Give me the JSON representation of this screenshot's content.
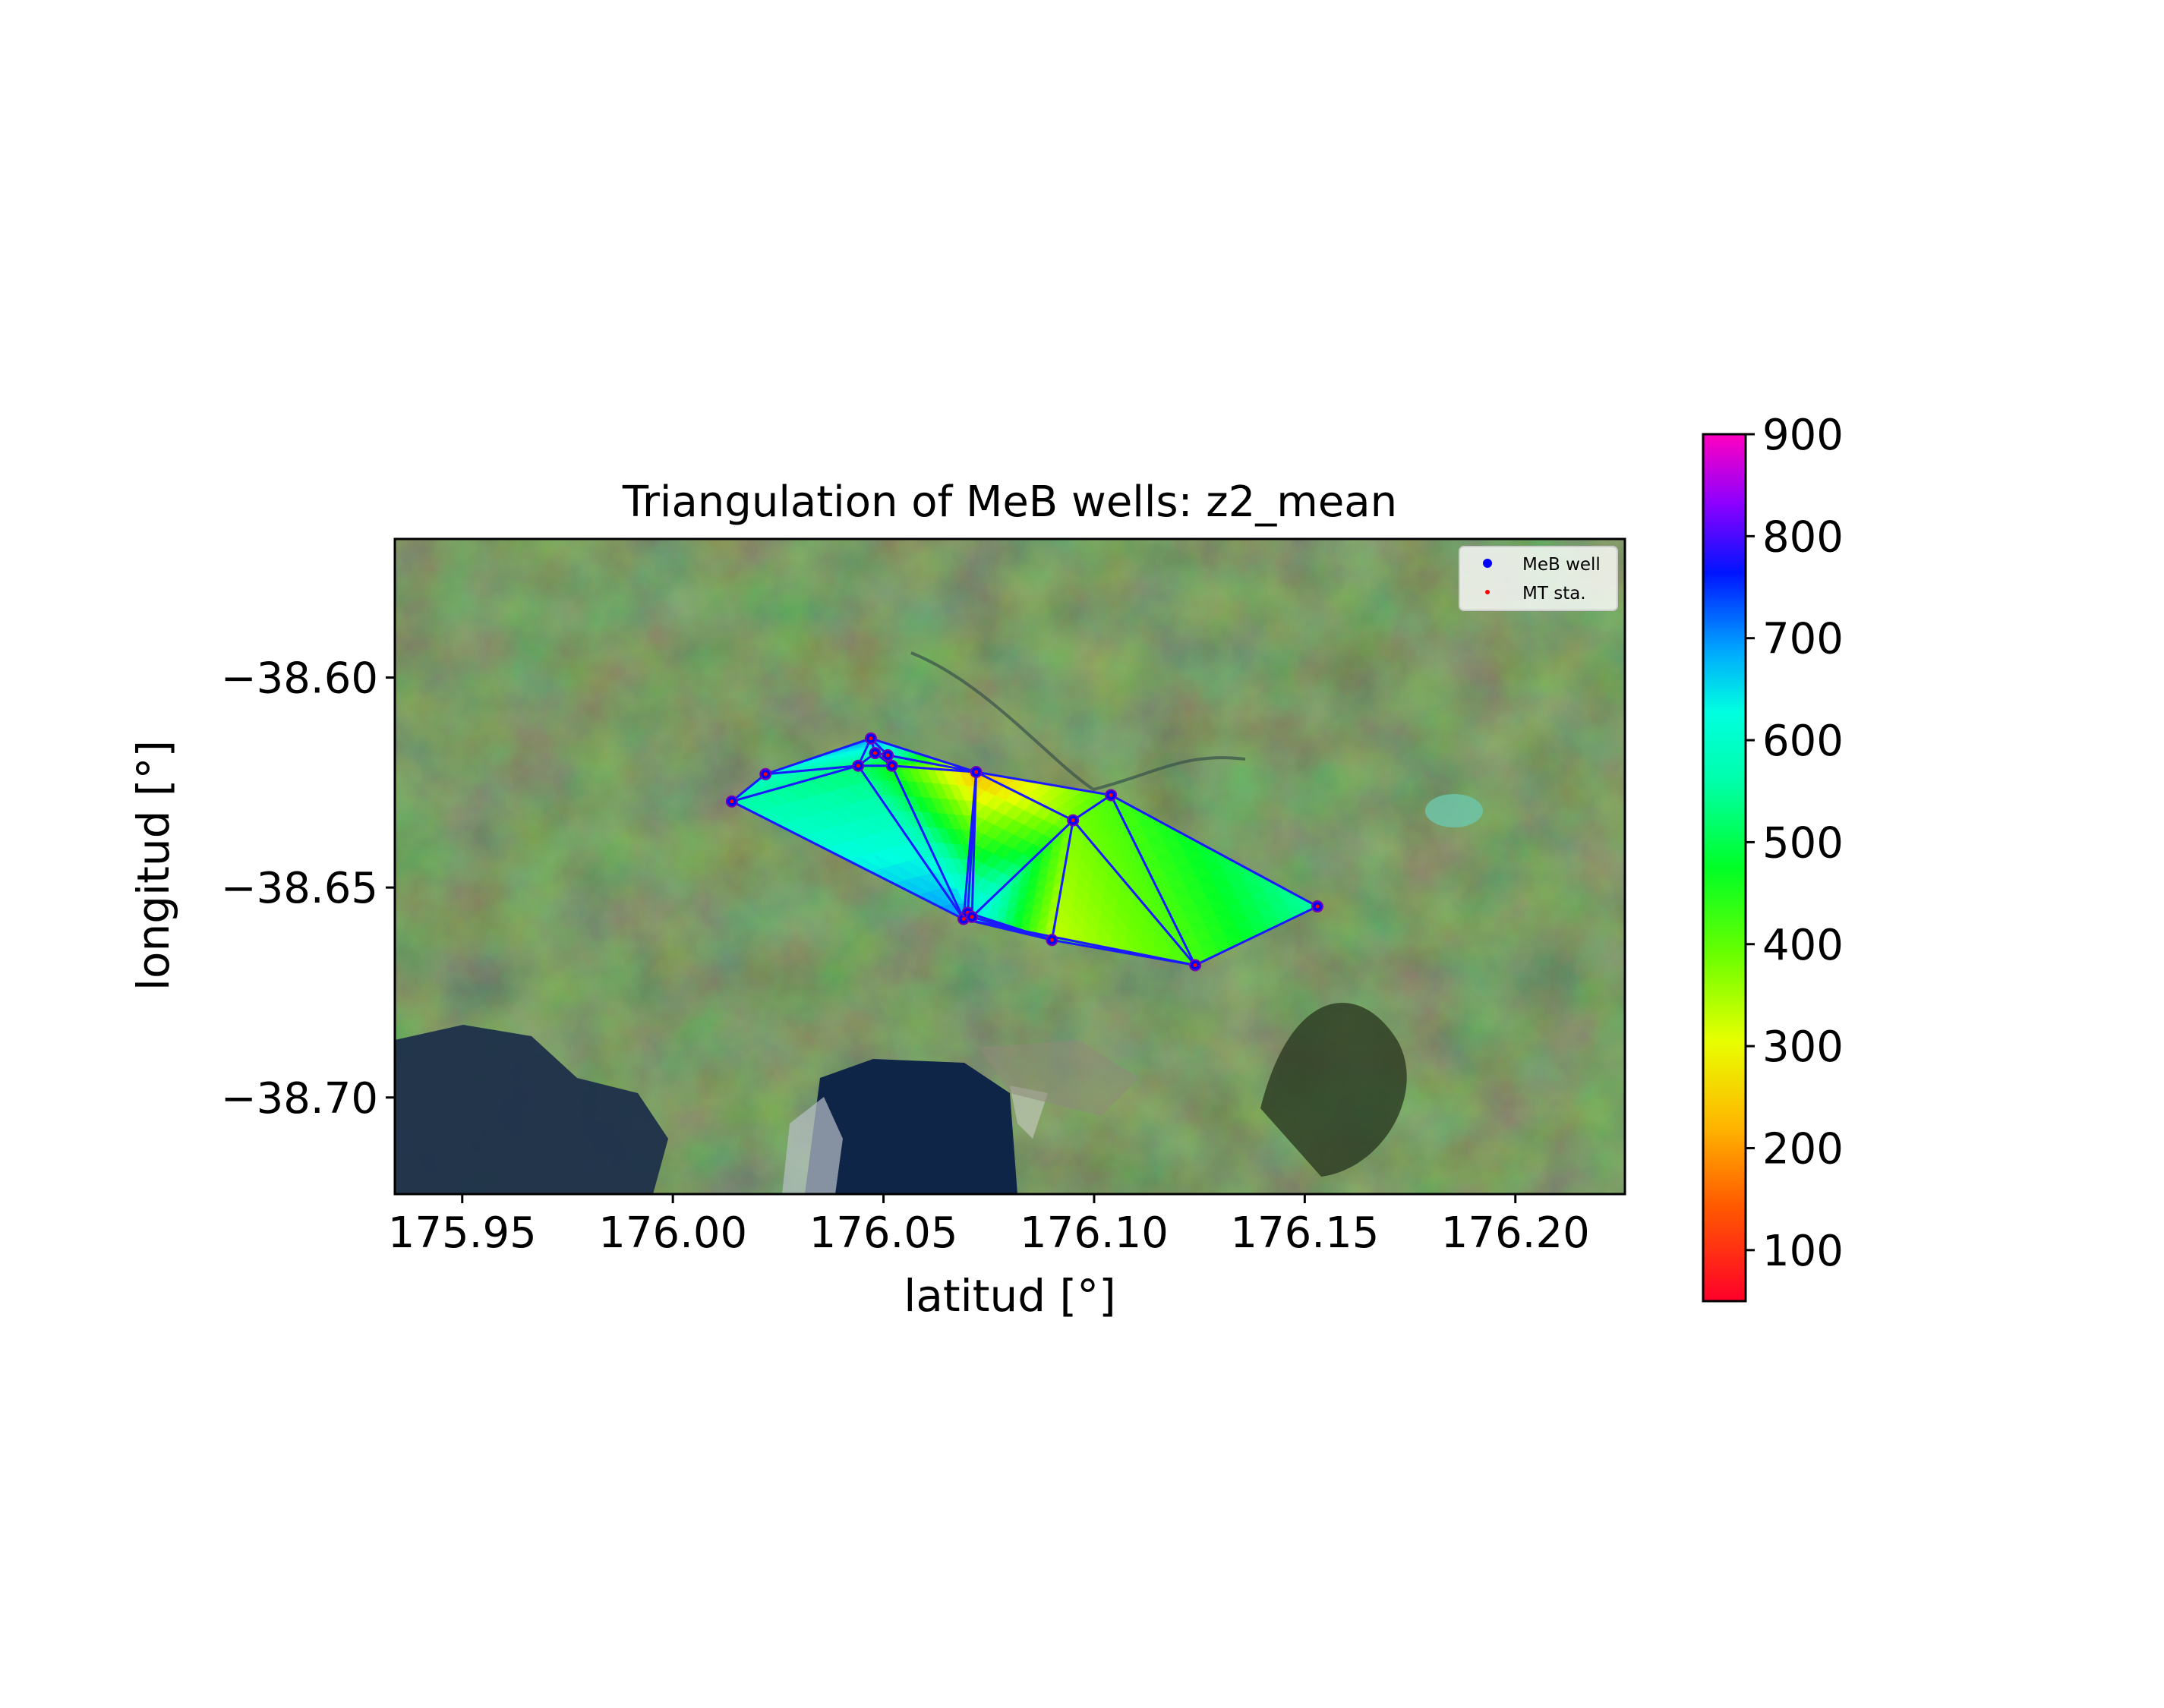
{
  "chart_data": {
    "type": "scatter",
    "title": "Triangulation of MeB wells: z2_mean",
    "xlabel": "latitud [°]",
    "ylabel": "longitud [°]",
    "xlim": [
      175.934,
      176.226
    ],
    "ylim": [
      -38.723,
      -38.567
    ],
    "xticks": [
      175.95,
      176.0,
      176.05,
      176.1,
      176.15,
      176.2
    ],
    "xtick_labels": [
      "175.95",
      "176.00",
      "176.05",
      "176.10",
      "176.15",
      "176.20"
    ],
    "yticks": [
      -38.6,
      -38.65,
      -38.7
    ],
    "ytick_labels": [
      "−38.60",
      "−38.65",
      "−38.70"
    ],
    "background": "satellite image (Google Earth)",
    "legend": {
      "position": "top-right",
      "entries": [
        {
          "label": "MeB well",
          "color": "#0000ff",
          "marker": "o"
        },
        {
          "label": "MT sta.",
          "color": "#ff0000",
          "marker": "."
        }
      ]
    },
    "colorbar": {
      "cmap": "gist_rainbow_r",
      "range": [
        50,
        900
      ],
      "ticks": [
        100,
        200,
        300,
        400,
        500,
        600,
        700,
        800,
        900
      ],
      "tick_labels": [
        "100",
        "200",
        "300",
        "400",
        "500",
        "600",
        "700",
        "800",
        "900"
      ]
    },
    "wells": [
      {
        "x": 176.014,
        "y": -38.6295,
        "z": 560
      },
      {
        "x": 176.022,
        "y": -38.623,
        "z": 600
      },
      {
        "x": 176.044,
        "y": -38.621,
        "z": 520
      },
      {
        "x": 176.047,
        "y": -38.6145,
        "z": 700
      },
      {
        "x": 176.048,
        "y": -38.618,
        "z": 600
      },
      {
        "x": 176.051,
        "y": -38.6185,
        "z": 620
      },
      {
        "x": 176.052,
        "y": -38.621,
        "z": 450
      },
      {
        "x": 176.072,
        "y": -38.6225,
        "z": 220
      },
      {
        "x": 176.095,
        "y": -38.634,
        "z": 380
      },
      {
        "x": 176.104,
        "y": -38.628,
        "z": 420
      },
      {
        "x": 176.069,
        "y": -38.6575,
        "z": 700
      },
      {
        "x": 176.07,
        "y": -38.656,
        "z": 650
      },
      {
        "x": 176.071,
        "y": -38.657,
        "z": 660
      },
      {
        "x": 176.09,
        "y": -38.6625,
        "z": 330
      },
      {
        "x": 176.124,
        "y": -38.6685,
        "z": 420
      },
      {
        "x": 176.153,
        "y": -38.6545,
        "z": 560
      }
    ],
    "triangles": [
      [
        0,
        1,
        2
      ],
      [
        1,
        3,
        2
      ],
      [
        3,
        4,
        2
      ],
      [
        4,
        6,
        2
      ],
      [
        4,
        5,
        6
      ],
      [
        3,
        5,
        4
      ],
      [
        3,
        7,
        5
      ],
      [
        5,
        7,
        6
      ],
      [
        6,
        7,
        10
      ],
      [
        2,
        6,
        10
      ],
      [
        0,
        2,
        10
      ],
      [
        7,
        11,
        10
      ],
      [
        7,
        12,
        11
      ],
      [
        7,
        8,
        12
      ],
      [
        7,
        9,
        8
      ],
      [
        8,
        13,
        12
      ],
      [
        8,
        14,
        13
      ],
      [
        8,
        9,
        14
      ],
      [
        9,
        15,
        14
      ],
      [
        12,
        13,
        11
      ],
      [
        10,
        11,
        13
      ],
      [
        10,
        13,
        14
      ]
    ]
  }
}
